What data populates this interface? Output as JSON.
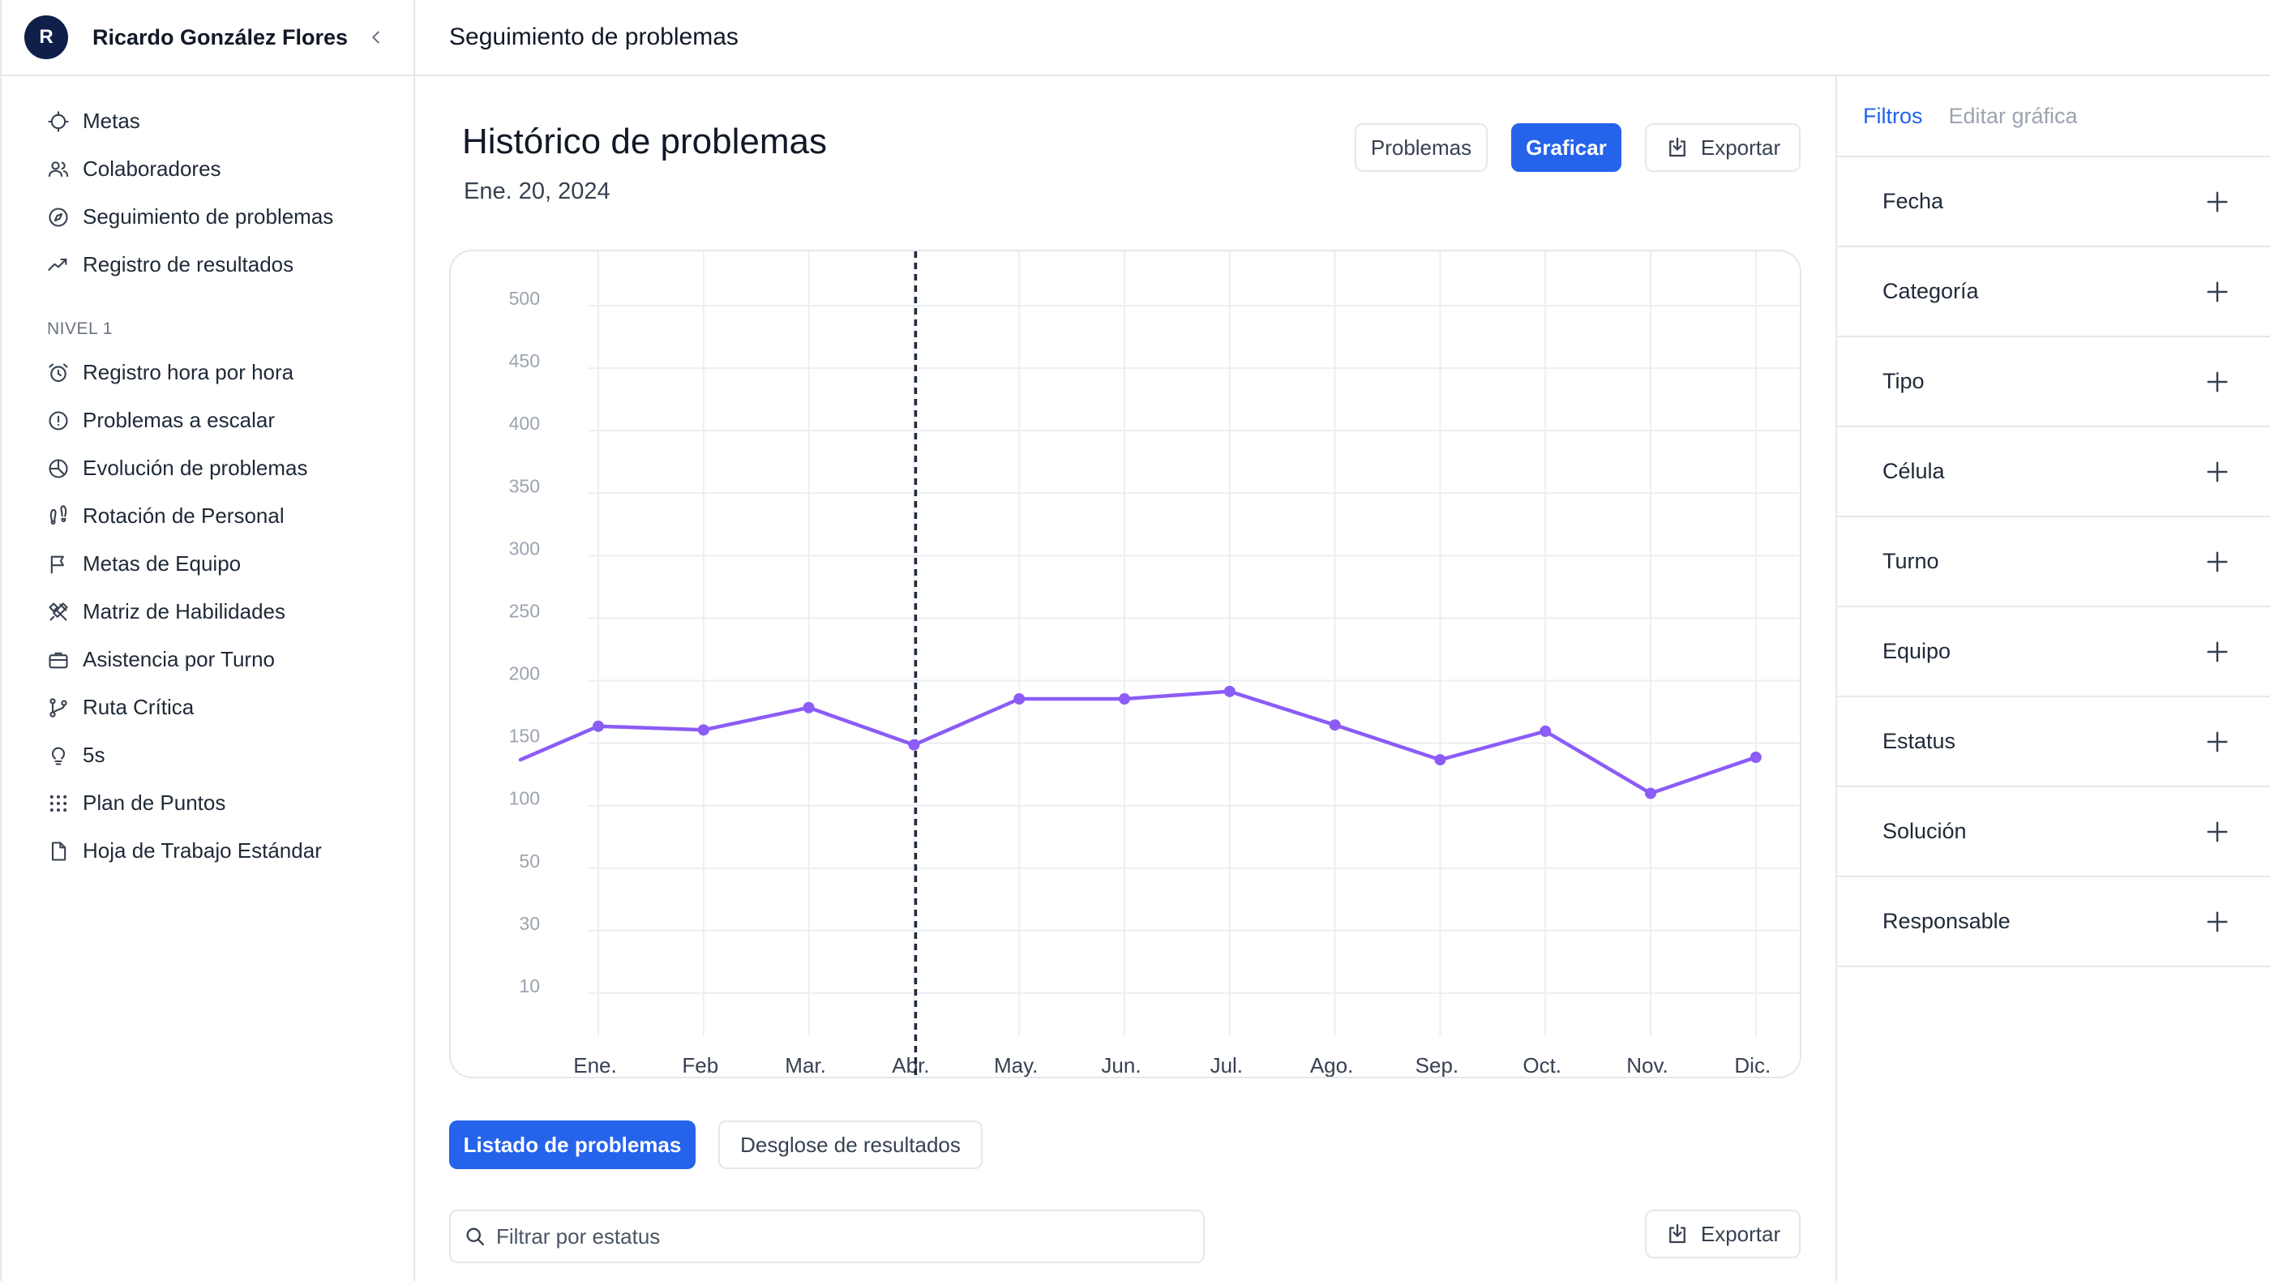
{
  "sidebar": {
    "user": {
      "initial": "R",
      "name": "Ricardo González Flores"
    },
    "items_top": [
      {
        "label": "Metas",
        "icon": "target-icon"
      },
      {
        "label": "Colaboradores",
        "icon": "users-icon"
      },
      {
        "label": "Seguimiento de problemas",
        "icon": "compass-icon"
      },
      {
        "label": "Registro de resultados",
        "icon": "trend-icon"
      }
    ],
    "section_label": "NIVEL 1",
    "items_level": [
      {
        "label": "Registro hora por hora",
        "icon": "alarm-clock-icon"
      },
      {
        "label": "Problemas a escalar",
        "icon": "alert-circle-icon"
      },
      {
        "label": "Evolución de problemas",
        "icon": "pie-chart-icon"
      },
      {
        "label": "Rotación de Personal",
        "icon": "footprints-icon"
      },
      {
        "label": "Metas de Equipo",
        "icon": "flag-icon"
      },
      {
        "label": "Matriz de Habilidades",
        "icon": "tools-icon"
      },
      {
        "label": "Asistencia por Turno",
        "icon": "briefcase-icon"
      },
      {
        "label": "Ruta Crítica",
        "icon": "git-branch-icon"
      },
      {
        "label": "5s",
        "icon": "lightbulb-icon"
      },
      {
        "label": "Plan de Puntos",
        "icon": "grid-dots-icon"
      },
      {
        "label": "Hoja de Trabajo Estándar",
        "icon": "file-icon"
      }
    ]
  },
  "header": {
    "title": "Seguimiento de problemas"
  },
  "main": {
    "title": "Histórico de problemas",
    "date": "Ene. 20, 2024",
    "buttons": {
      "problems": "Problemas",
      "chart": "Graficar",
      "export": "Exportar"
    },
    "tabs": {
      "list": "Listado de problemas",
      "breakdown": "Desglose de resultados"
    },
    "filter": {
      "placeholder": "Filtrar por estatus"
    },
    "export_bottom": "Exportar"
  },
  "chart_data": {
    "type": "line",
    "categories": [
      "Ene.",
      "Feb",
      "Mar.",
      "Abr.",
      "May.",
      "Jun.",
      "Jul.",
      "Ago.",
      "Sep.",
      "Oct.",
      "Nov.",
      "Dic."
    ],
    "y_ticks": [
      "500",
      "450",
      "400",
      "350",
      "300",
      "250",
      "200",
      "150",
      "100",
      "50",
      "30",
      "10"
    ],
    "start_value": 178,
    "values": [
      205,
      202,
      220,
      190,
      227,
      227,
      233,
      206,
      178,
      201,
      151,
      180
    ],
    "highlight_category": "Abr.",
    "series_color": "#8b5cf6",
    "grid": true
  },
  "right_panel": {
    "tabs": {
      "filters": "Filtros",
      "edit": "Editar gráfica"
    },
    "filters": [
      "Fecha",
      "Categoría",
      "Tipo",
      "Célula",
      "Turno",
      "Equipo",
      "Estatus",
      "Solución",
      "Responsable"
    ]
  }
}
